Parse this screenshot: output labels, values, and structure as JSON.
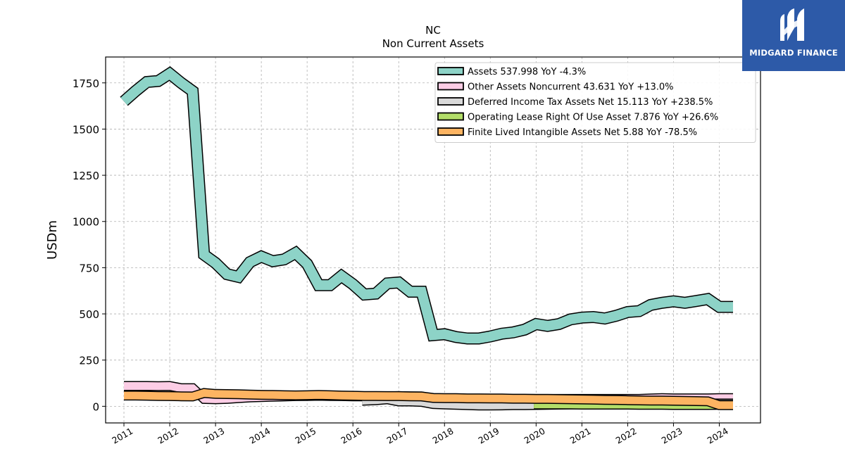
{
  "brand": {
    "name": "MIDGARD FINANCE",
    "color": "#2d5aa8",
    "icon": "midgard-logo-icon"
  },
  "chart_data": {
    "type": "area",
    "title": "NC",
    "subtitle": "Non Current  Assets",
    "ylabel": "USDm",
    "xlabel": "",
    "xlim": [
      2010.6,
      2024.9
    ],
    "ylim": [
      -90,
      1890
    ],
    "yticks": [
      0,
      250,
      500,
      750,
      1000,
      1250,
      1500,
      1750
    ],
    "xticks": [
      "2011",
      "2012",
      "2013",
      "2014",
      "2015",
      "2016",
      "2017",
      "2018",
      "2019",
      "2020",
      "2021",
      "2022",
      "2023",
      "2024"
    ],
    "grid": true,
    "legend_position": "top-right",
    "series": [
      {
        "name": "Assets",
        "legend": "Assets  537.998 YoY -4.3%",
        "color": "#8dd3c7",
        "lw": 14,
        "x": [
          2011.0,
          2011.25,
          2011.5,
          2011.75,
          2012.0,
          2012.25,
          2012.5,
          2012.75,
          2013.0,
          2013.25,
          2013.5,
          2013.75,
          2014.0,
          2014.25,
          2014.5,
          2014.75,
          2015.0,
          2015.25,
          2015.5,
          2015.75,
          2016.0,
          2016.25,
          2016.5,
          2016.75,
          2017.0,
          2017.25,
          2017.5,
          2017.75,
          2018.0,
          2018.25,
          2018.5,
          2018.75,
          2019.0,
          2019.25,
          2019.5,
          2019.75,
          2020.0,
          2020.25,
          2020.5,
          2020.75,
          2021.0,
          2021.25,
          2021.5,
          2021.75,
          2022.0,
          2022.25,
          2022.5,
          2022.75,
          2023.0,
          2023.25,
          2023.5,
          2023.75,
          2024.0,
          2024.3
        ],
        "y": [
          1650,
          1705,
          1755,
          1760,
          1800,
          1750,
          1705,
          820,
          775,
          715,
          700,
          780,
          810,
          785,
          795,
          830,
          770,
          655,
          655,
          705,
          660,
          605,
          610,
          665,
          670,
          620,
          620,
          385,
          390,
          375,
          367,
          367,
          378,
          393,
          400,
          415,
          445,
          435,
          445,
          470,
          480,
          483,
          475,
          490,
          510,
          515,
          548,
          560,
          568,
          560,
          570,
          580,
          538,
          538
        ]
      },
      {
        "name": "Other Assets Noncurrent",
        "legend": "Other Assets Noncurrent  43.631 YoY +13.0%",
        "color": "#fccde5",
        "lw": 11,
        "x": [
          2011.0,
          2011.25,
          2011.5,
          2011.75,
          2012.0,
          2012.25,
          2012.5,
          2012.75,
          2013.0,
          2013.25,
          2013.5,
          2013.75,
          2014.0,
          2014.25,
          2014.5,
          2014.75,
          2015.0,
          2015.25,
          2015.5,
          2015.75,
          2016.0,
          2016.25,
          2016.5,
          2016.75,
          2017.0,
          2017.25,
          2017.5,
          2017.75,
          2018.0,
          2018.25,
          2018.5,
          2018.75,
          2019.0,
          2019.25,
          2019.5,
          2019.75,
          2020.0,
          2020.25,
          2020.5,
          2020.75,
          2021.0,
          2021.25,
          2021.5,
          2021.75,
          2022.0,
          2022.25,
          2022.5,
          2022.75,
          2023.0,
          2023.25,
          2023.5,
          2023.75,
          2024.0,
          2024.3
        ],
        "y": [
          110,
          110,
          110,
          109,
          110,
          98,
          98,
          40,
          38,
          40,
          44,
          48,
          50,
          52,
          53,
          55,
          56,
          57,
          56,
          55,
          54,
          54,
          54,
          54,
          55,
          54,
          53,
          42,
          43,
          42,
          41,
          40,
          40,
          40,
          40,
          40,
          40,
          40,
          40,
          40,
          40,
          40,
          40,
          40,
          40,
          40,
          42,
          44,
          43,
          43,
          43,
          43,
          44,
          44
        ]
      },
      {
        "name": "Deferred Income Tax Assets Net",
        "legend": "Deferred Income Tax Assets Net  15.113 YoY +238.5%",
        "color": "#d9d9d9",
        "lw": 11,
        "x": [
          2016.2,
          2016.5,
          2016.75,
          2017.0,
          2017.25,
          2017.5,
          2017.75,
          2018.0,
          2018.25,
          2018.5,
          2018.75,
          2019.0,
          2019.25,
          2019.5,
          2019.75,
          2020.0,
          2020.25,
          2020.5,
          2020.75,
          2021.0,
          2021.25,
          2021.5,
          2021.75,
          2022.0,
          2022.25,
          2022.5,
          2022.75,
          2023.0,
          2023.25,
          2023.5,
          2023.75,
          2024.0,
          2024.3
        ],
        "y": [
          30,
          33,
          38,
          26,
          26,
          24,
          12,
          10,
          8,
          6,
          4,
          4,
          5,
          6,
          6,
          7,
          8,
          9,
          10,
          11,
          12,
          13,
          13,
          14,
          15,
          15,
          15,
          15,
          15,
          15,
          15,
          15,
          15
        ]
      },
      {
        "name": "Operating Lease Right Of Use Asset",
        "legend": "Operating Lease Right Of Use Asset  7.876 YoY +26.6%",
        "color": "#b3de69",
        "lw": 11,
        "x": [
          2019.95,
          2020.25,
          2020.5,
          2020.75,
          2021.0,
          2021.25,
          2021.5,
          2021.75,
          2022.0,
          2022.25,
          2022.5,
          2022.75,
          2023.0,
          2023.25,
          2023.5,
          2023.75,
          2024.0,
          2024.3
        ],
        "y": [
          10,
          10,
          10,
          10,
          9,
          9,
          9,
          9,
          9,
          8,
          8,
          8,
          7,
          7,
          7,
          7,
          7.9,
          7.9
        ]
      },
      {
        "name": "Finite Lived Intangible Assets Net",
        "legend": "Finite Lived Intangible Assets Net  5.88 YoY -78.5%",
        "color": "#fdb462",
        "lw": 11,
        "x": [
          2011.0,
          2011.25,
          2011.5,
          2011.75,
          2012.0,
          2012.25,
          2012.5,
          2012.75,
          2013.0,
          2013.25,
          2013.5,
          2013.75,
          2014.0,
          2014.25,
          2014.5,
          2014.75,
          2015.0,
          2015.25,
          2015.5,
          2015.75,
          2016.0,
          2016.25,
          2016.5,
          2016.75,
          2017.0,
          2017.25,
          2017.5,
          2017.75,
          2018.0,
          2018.25,
          2018.5,
          2018.75,
          2019.0,
          2019.25,
          2019.5,
          2019.75,
          2020.0,
          2020.25,
          2020.5,
          2020.75,
          2021.0,
          2021.25,
          2021.5,
          2021.75,
          2022.0,
          2022.25,
          2022.5,
          2022.75,
          2023.0,
          2023.25,
          2023.5,
          2023.75,
          2024.0,
          2024.3
        ],
        "y": [
          58,
          58,
          57,
          56,
          55,
          54,
          53,
          72,
          67,
          66,
          65,
          63,
          62,
          61,
          60,
          59,
          60,
          61,
          60,
          58,
          57,
          56,
          56,
          55,
          55,
          54,
          53,
          45,
          44,
          44,
          43,
          43,
          42,
          42,
          41,
          41,
          40,
          40,
          39,
          38,
          37,
          36,
          35,
          34,
          33,
          32,
          31,
          31,
          30,
          29,
          28,
          27,
          6,
          6
        ]
      }
    ]
  }
}
